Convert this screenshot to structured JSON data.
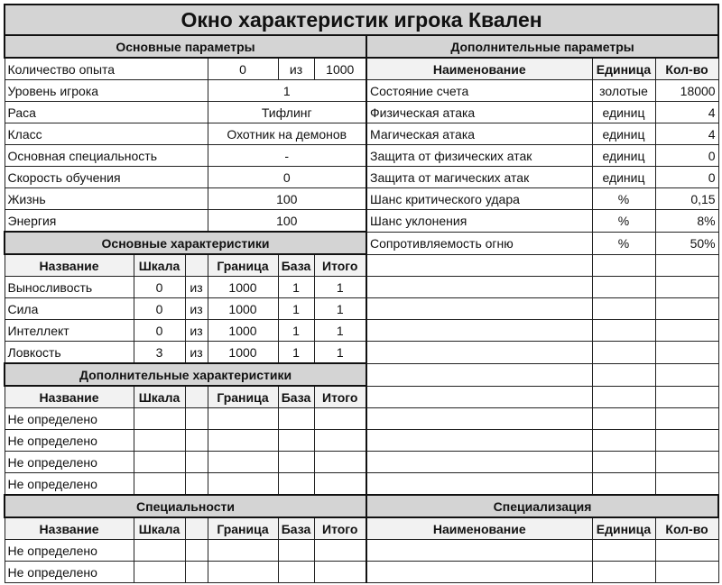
{
  "title": "Окно характеристик игрока Квален",
  "basic_params": {
    "header": "Основные параметры",
    "experience": {
      "label": "Количество опыта",
      "value": "0",
      "of": "из",
      "max": "1000"
    },
    "rows": [
      {
        "label": "Уровень игрока",
        "value": "1"
      },
      {
        "label": "Раса",
        "value": "Тифлинг"
      },
      {
        "label": "Класс",
        "value": "Охотник на демонов"
      },
      {
        "label": "Основная специальность",
        "value": "-"
      },
      {
        "label": "Скорость обучения",
        "value": "0"
      },
      {
        "label": "Жизнь",
        "value": "100"
      },
      {
        "label": "Энергия",
        "value": "100"
      }
    ]
  },
  "stat_columns": [
    "Название",
    "Шкала",
    "",
    "Граница",
    "База",
    "Итого"
  ],
  "main_stats": {
    "header": "Основные характеристики",
    "rows": [
      [
        "Выносливость",
        "0",
        "из",
        "1000",
        "1",
        "1"
      ],
      [
        "Сила",
        "0",
        "из",
        "1000",
        "1",
        "1"
      ],
      [
        "Интеллект",
        "0",
        "из",
        "1000",
        "1",
        "1"
      ],
      [
        "Ловкость",
        "3",
        "из",
        "1000",
        "1",
        "1"
      ]
    ]
  },
  "extra_stats": {
    "header": "Дополнительные характеристики",
    "rows": [
      [
        "Не определено",
        "",
        "",
        "",
        "",
        ""
      ],
      [
        "Не определено",
        "",
        "",
        "",
        "",
        ""
      ],
      [
        "Не определено",
        "",
        "",
        "",
        "",
        ""
      ],
      [
        "Не определено",
        "",
        "",
        "",
        "",
        ""
      ]
    ]
  },
  "specialties": {
    "header": "Специальности",
    "rows": [
      [
        "Не определено",
        "",
        "",
        "",
        "",
        ""
      ],
      [
        "Не определено",
        "",
        "",
        "",
        "",
        ""
      ]
    ]
  },
  "extra_params": {
    "header": "Дополнительные параметры",
    "columns": [
      "Наименование",
      "Единица",
      "Кол-во"
    ],
    "rows": [
      [
        "Состояние счета",
        "золотые",
        "18000"
      ],
      [
        "Физическая атака",
        "единиц",
        "4"
      ],
      [
        "Магическая атака",
        "единиц",
        "4"
      ],
      [
        "Защита от физических атак",
        "единиц",
        "0"
      ],
      [
        "Защита от магических атак",
        "единиц",
        "0"
      ],
      [
        "Шанс критического удара",
        "%",
        "0,15"
      ],
      [
        "Шанс уклонения",
        "%",
        "8%"
      ],
      [
        "Сопротивляемость огню",
        "%",
        "50%"
      ]
    ]
  },
  "specialization": {
    "header": "Специализация",
    "columns": [
      "Наименование",
      "Единица",
      "Кол-во"
    ]
  }
}
